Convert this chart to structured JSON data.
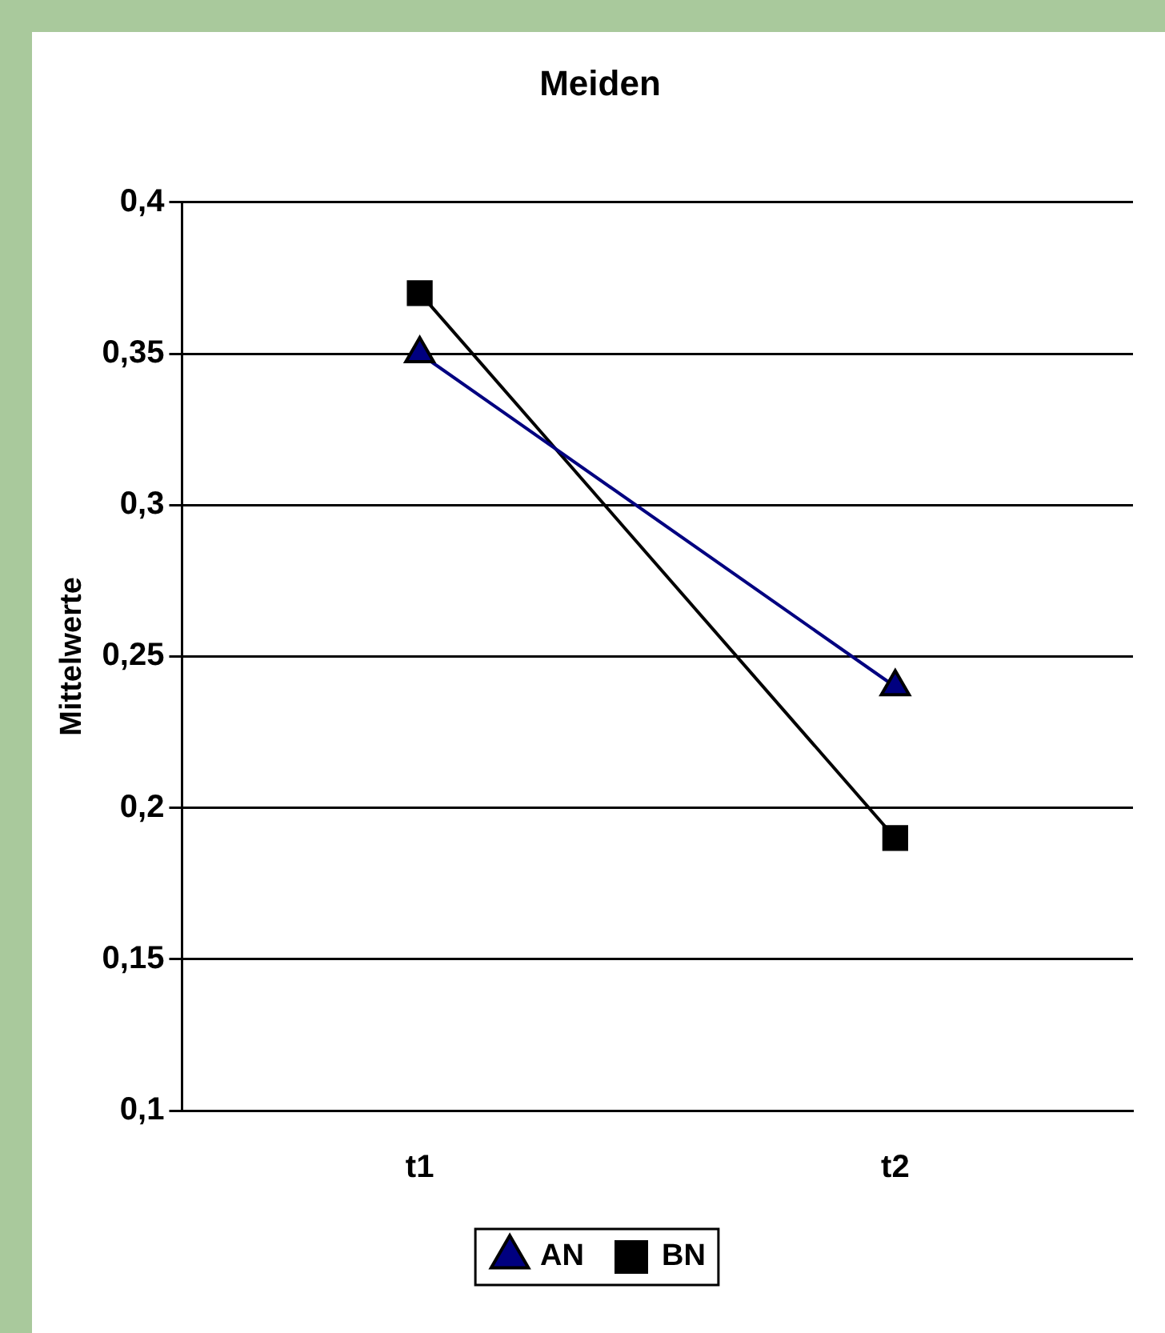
{
  "chart_data": {
    "type": "line",
    "title": "Meiden",
    "ylabel": "Mittelwerte",
    "categories": [
      "t1",
      "t2"
    ],
    "series": [
      {
        "name": "AN",
        "color": "#000080",
        "marker": "triangle",
        "values": [
          0.35,
          0.24
        ]
      },
      {
        "name": "BN",
        "color": "#000000",
        "marker": "square",
        "values": [
          0.37,
          0.19
        ]
      }
    ],
    "ylim": [
      0.1,
      0.4
    ],
    "yticks": [
      {
        "value": 0.1,
        "label": "0,1"
      },
      {
        "value": 0.15,
        "label": "0,15"
      },
      {
        "value": 0.2,
        "label": "0,2"
      },
      {
        "value": 0.25,
        "label": "0,25"
      },
      {
        "value": 0.3,
        "label": "0,3"
      },
      {
        "value": 0.35,
        "label": "0,35"
      },
      {
        "value": 0.4,
        "label": "0,4"
      }
    ],
    "grid": "y",
    "legend": "bottom",
    "line_style": "solid"
  }
}
